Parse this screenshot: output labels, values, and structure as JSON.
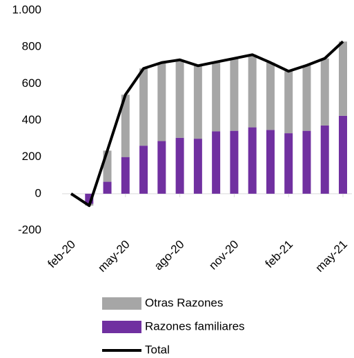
{
  "chart_data": {
    "type": "stacked-bar-line",
    "categories": [
      "feb-20",
      null,
      null,
      "may-20",
      null,
      null,
      "ago-20",
      null,
      null,
      "nov-20",
      null,
      null,
      "feb-21",
      null,
      null,
      "may-21"
    ],
    "series": [
      {
        "name": "Otras Razones",
        "color": "#a6a6a6",
        "kind": "bar",
        "values": [
          0,
          -10,
          170,
          340,
          421,
          428,
          425,
          398,
          378,
          395,
          396,
          367,
          338,
          357,
          366,
          405
        ]
      },
      {
        "name": "Razones familiares",
        "color": "#7030a0",
        "kind": "bar",
        "values": [
          0,
          -55,
          65,
          200,
          262,
          287,
          305,
          300,
          340,
          343,
          362,
          348,
          330,
          343,
          372,
          425
        ]
      },
      {
        "name": "Total",
        "color": "#000000",
        "kind": "line",
        "values": [
          0,
          -65,
          235,
          540,
          683,
          715,
          730,
          698,
          718,
          738,
          758,
          715,
          668,
          700,
          738,
          830
        ]
      }
    ],
    "ylim": [
      -200,
      1000
    ],
    "yticks": [
      -200,
      0,
      200,
      400,
      600,
      800,
      {
        "value": 1000,
        "label": "1.000"
      }
    ]
  }
}
